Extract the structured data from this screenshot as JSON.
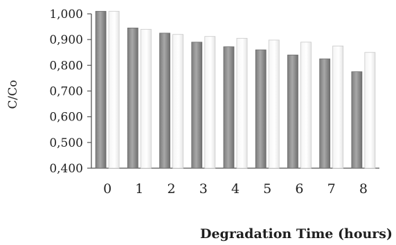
{
  "chart_data": {
    "type": "bar",
    "categories": [
      "0",
      "1",
      "2",
      "3",
      "4",
      "5",
      "6",
      "7",
      "8"
    ],
    "series": [
      {
        "values": [
          1.01,
          0.945,
          0.925,
          0.89,
          0.872,
          0.86,
          0.84,
          0.825,
          0.775
        ],
        "color": "#9a9a9a"
      },
      {
        "values": [
          1.01,
          0.94,
          0.92,
          0.912,
          0.905,
          0.898,
          0.89,
          0.875,
          0.85
        ],
        "color": "#ffffff"
      }
    ],
    "xlabel": "Degradation Time (hours)",
    "ylabel": "C/Co",
    "ylim": [
      0.4,
      1.0
    ],
    "yticks": [
      "1,000",
      "0,900",
      "0,800",
      "0,700",
      "0,600",
      "0,500",
      "0,400"
    ],
    "grid": false,
    "legend": "none"
  }
}
